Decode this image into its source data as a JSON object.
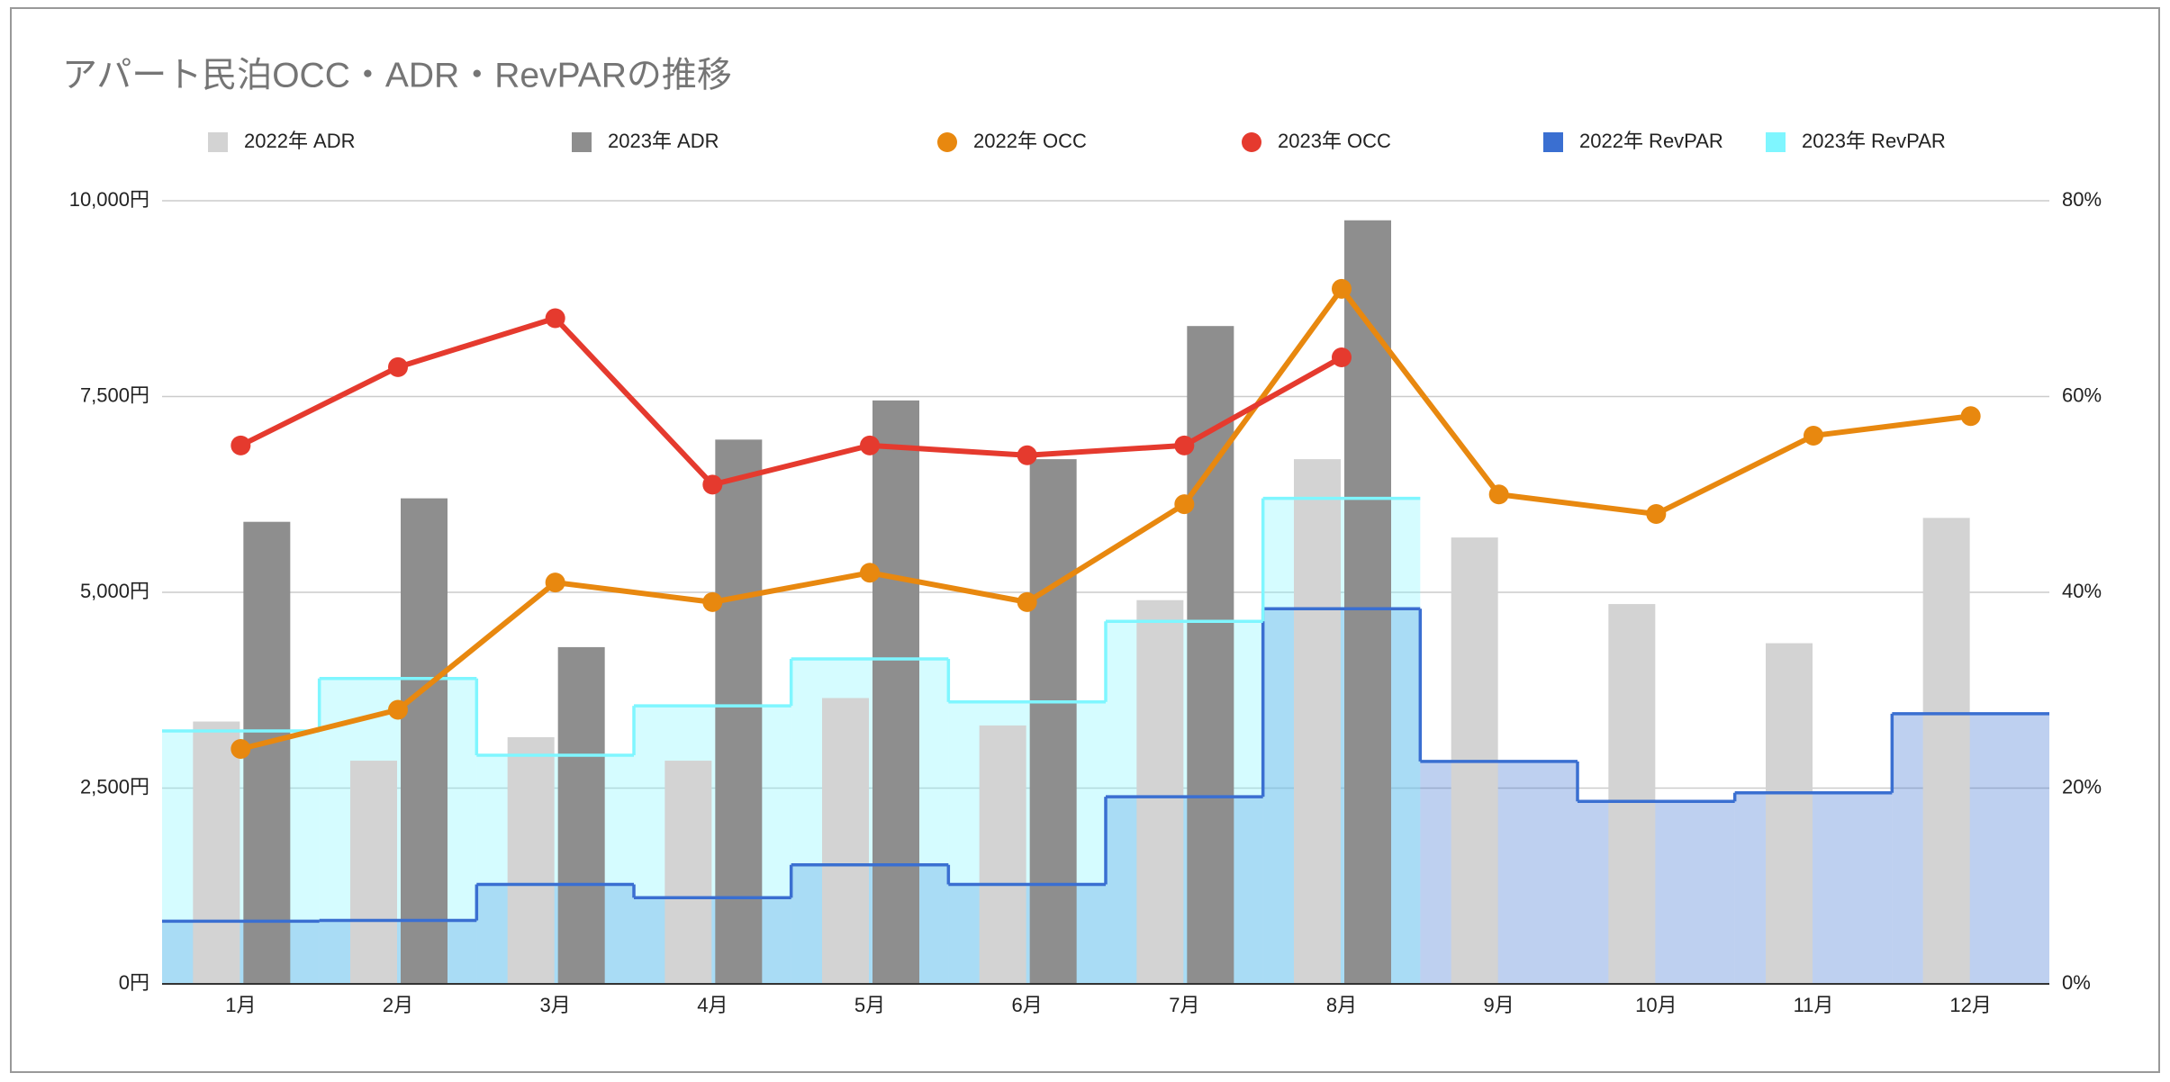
{
  "chart_data": {
    "type": "combo",
    "title": "アパート民泊OCC・ADR・RevPARの推移",
    "categories": [
      "1月",
      "2月",
      "3月",
      "4月",
      "5月",
      "6月",
      "7月",
      "8月",
      "9月",
      "10月",
      "11月",
      "12月"
    ],
    "series": [
      {
        "name": "2022年 ADR",
        "type": "bar",
        "color": "#d3d3d3",
        "values": [
          3350,
          2850,
          3150,
          2850,
          3650,
          3300,
          4900,
          6700,
          5700,
          4850,
          4350,
          5950
        ]
      },
      {
        "name": "2023年 ADR",
        "type": "bar",
        "color": "#8e8e8e",
        "values": [
          5900,
          6200,
          4300,
          6950,
          7450,
          6700,
          8400,
          9750,
          null,
          null,
          null,
          null
        ]
      },
      {
        "name": "2022年 OCC",
        "type": "line",
        "axis": "y2",
        "color": "#e8880f",
        "values": [
          24,
          28,
          41,
          39,
          42,
          39,
          49,
          71,
          50,
          48,
          56,
          58
        ]
      },
      {
        "name": "2023年 OCC",
        "type": "line",
        "axis": "y2",
        "color": "#e53a2e",
        "values": [
          55,
          63,
          68,
          51,
          55,
          54,
          55,
          64,
          null,
          null,
          null,
          null
        ]
      },
      {
        "name": "2022年 RevPAR",
        "type": "steparea",
        "color": "#3a6fd1",
        "values": [
          800,
          810,
          1270,
          1100,
          1520,
          1270,
          2390,
          4790,
          2840,
          2330,
          2440,
          3450
        ]
      },
      {
        "name": "2023年 RevPAR",
        "type": "steparea",
        "color": "#7ff6ff",
        "values": [
          3230,
          3900,
          2920,
          3550,
          4150,
          3600,
          4630,
          6200,
          null,
          null,
          null,
          null
        ]
      }
    ],
    "ylim": [
      0,
      10000
    ],
    "yticks": [
      {
        "value": 0,
        "label": "0円"
      },
      {
        "value": 2500,
        "label": "2,500円"
      },
      {
        "value": 5000,
        "label": "5,000円"
      },
      {
        "value": 7500,
        "label": "7,500円"
      },
      {
        "value": 10000,
        "label": "10,000円"
      }
    ],
    "y2lim": [
      0,
      80
    ],
    "y2ticks": [
      {
        "value": 0,
        "label": "0%"
      },
      {
        "value": 20,
        "label": "20%"
      },
      {
        "value": 40,
        "label": "40%"
      },
      {
        "value": 60,
        "label": "60%"
      },
      {
        "value": 80,
        "label": "80%"
      }
    ],
    "grid": true,
    "legend": "top"
  }
}
